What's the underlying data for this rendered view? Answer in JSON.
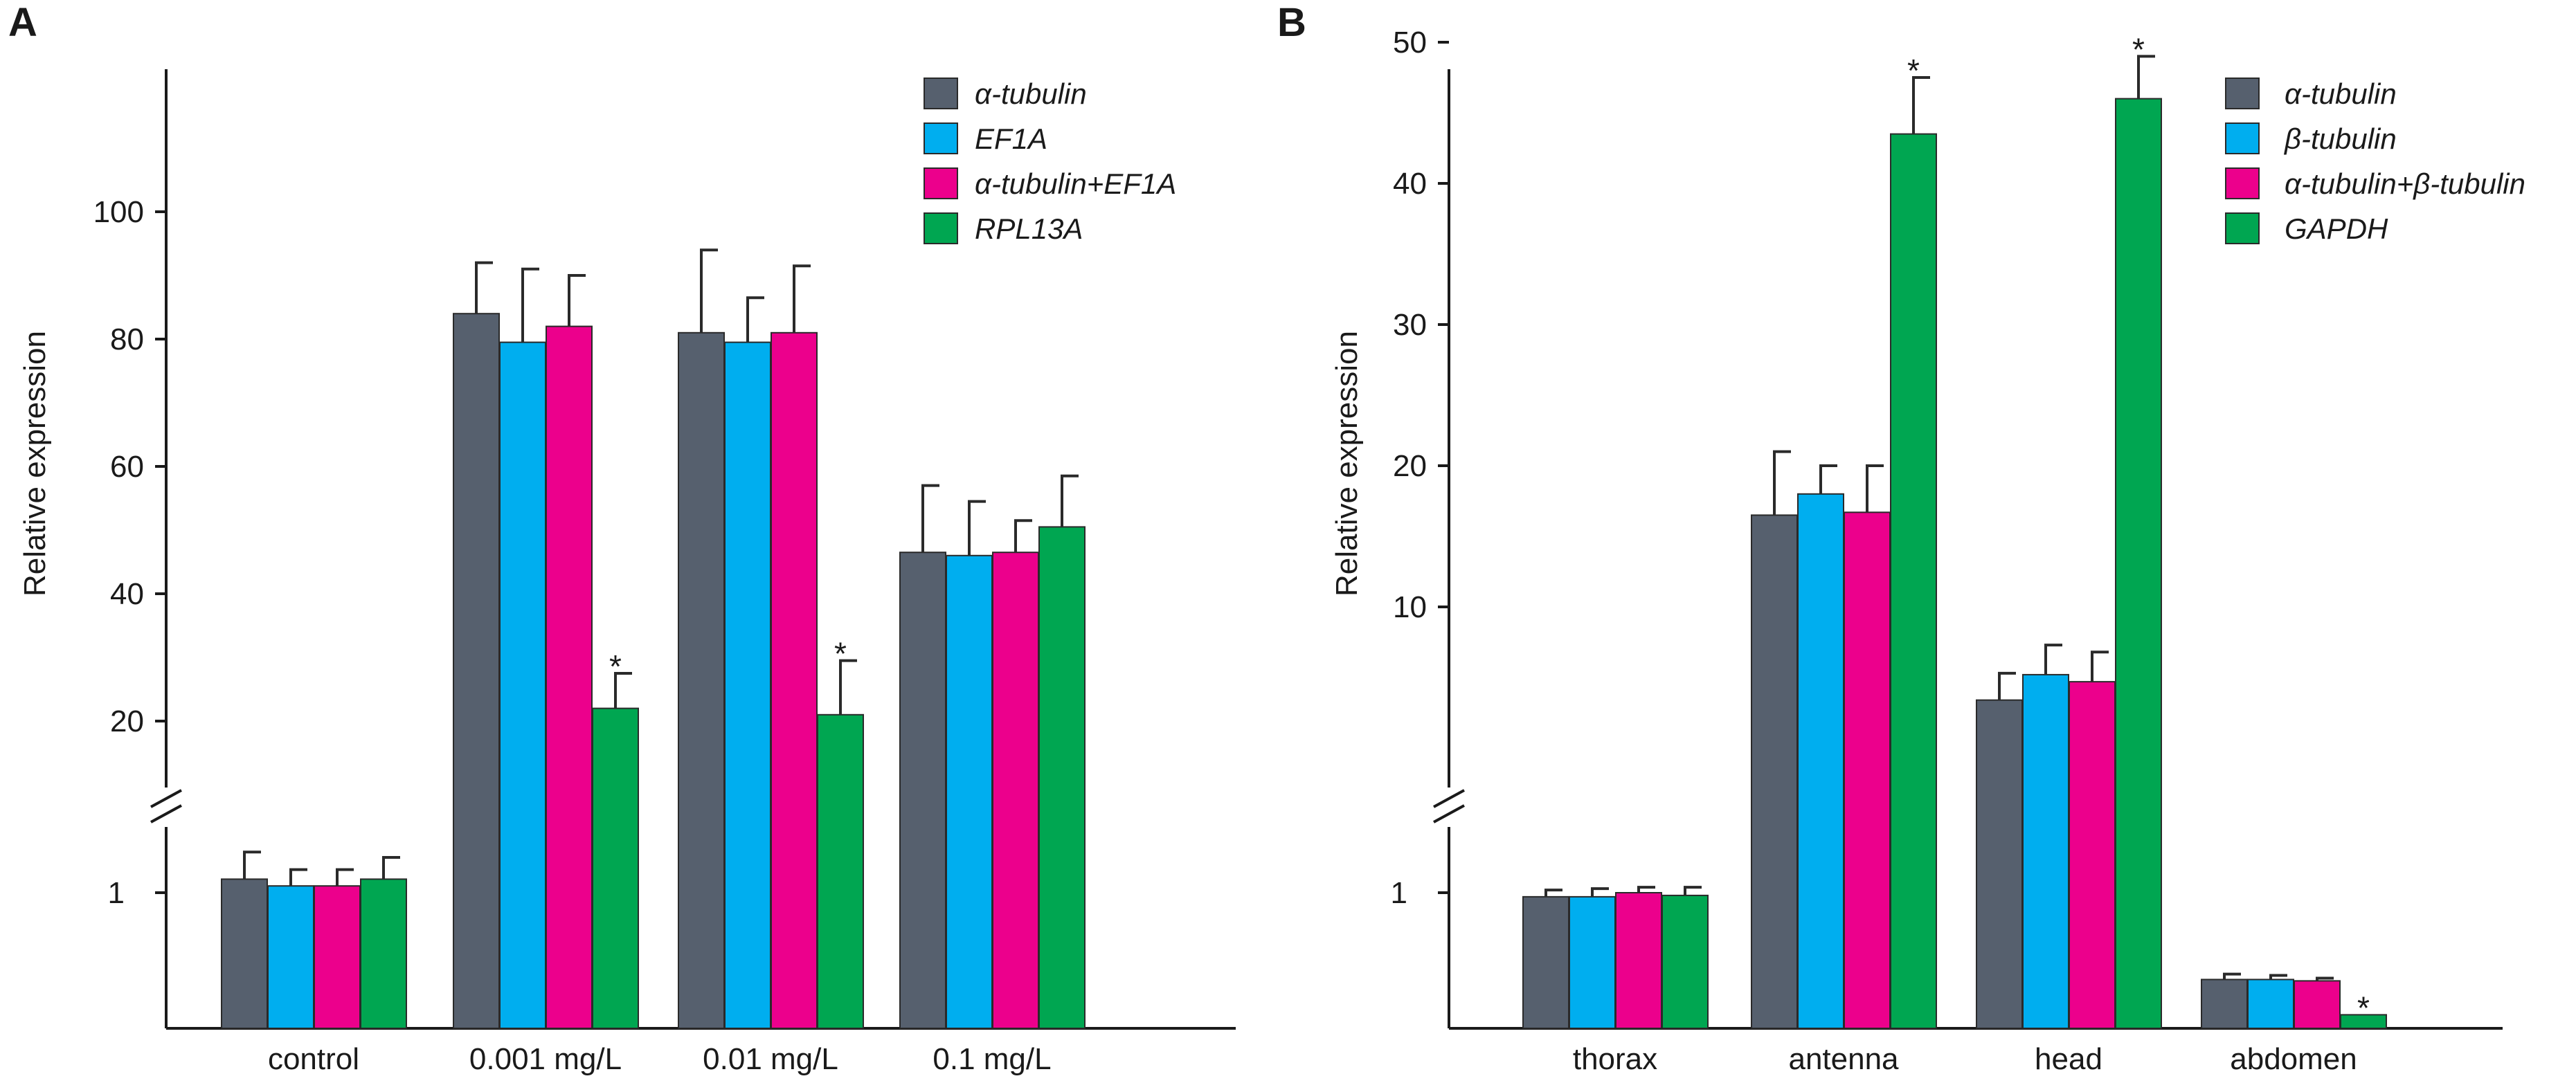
{
  "chart_data": [
    {
      "panel": "A",
      "type": "bar",
      "ylabel": "Relative expression",
      "categories": [
        "control",
        "0.001 mg/L",
        "0.01 mg/L",
        "0.1 mg/L"
      ],
      "y_axis_break": true,
      "lower_ticks": [
        "1"
      ],
      "upper_ticks": [
        "20",
        "40",
        "60",
        "80",
        "100"
      ],
      "series": [
        {
          "name": "α-tubulin",
          "color": "#56606e",
          "values": [
            1.1,
            84,
            81,
            46.5
          ],
          "errors": [
            0.2,
            8,
            13,
            10.5
          ]
        },
        {
          "name": "EF1A",
          "color": "#00aeef",
          "values": [
            1.05,
            79.5,
            79.5,
            46
          ],
          "errors": [
            0.12,
            11.5,
            7,
            8.5
          ]
        },
        {
          "name": "α-tubulin+EF1A",
          "color": "#ec008c",
          "values": [
            1.05,
            82,
            81,
            46.5
          ],
          "errors": [
            0.12,
            8,
            10.5,
            5
          ]
        },
        {
          "name": "RPL13A",
          "color": "#00a651",
          "values": [
            1.1,
            22,
            21,
            50.5
          ],
          "errors": [
            0.16,
            5.5,
            8.5,
            8
          ]
        }
      ],
      "significance": [
        {
          "category": "0.001 mg/L",
          "series": "RPL13A",
          "label": "*"
        },
        {
          "category": "0.01 mg/L",
          "series": "RPL13A",
          "label": "*"
        }
      ]
    },
    {
      "panel": "B",
      "type": "bar",
      "ylabel": "Relative expression",
      "categories": [
        "thorax",
        "antenna",
        "head",
        "abdomen"
      ],
      "y_axis_break": true,
      "lower_ticks": [
        "1"
      ],
      "upper_ticks": [
        "10",
        "20",
        "30",
        "40",
        "50"
      ],
      "series": [
        {
          "name": "α-tubulin",
          "color": "#56606e",
          "values": [
            0.97,
            16.5,
            3.4,
            0.36
          ],
          "errors": [
            0.05,
            4.5,
            1.9,
            0.04
          ]
        },
        {
          "name": "β-tubulin",
          "color": "#00aeef",
          "values": [
            0.97,
            18,
            5.2,
            0.36
          ],
          "errors": [
            0.06,
            2,
            2.1,
            0.03
          ]
        },
        {
          "name": "α-tubulin+β-tubulin",
          "color": "#ec008c",
          "values": [
            1.0,
            16.7,
            4.7,
            0.35
          ],
          "errors": [
            0.04,
            3.3,
            2.1,
            0.02
          ]
        },
        {
          "name": "GAPDH",
          "color": "#00a651",
          "values": [
            0.98,
            43.5,
            46,
            0.1
          ],
          "errors": [
            0.06,
            4,
            3,
            0.0
          ]
        }
      ],
      "significance": [
        {
          "category": "antenna",
          "series": "GAPDH",
          "label": "*"
        },
        {
          "category": "head",
          "series": "GAPDH",
          "label": "*"
        },
        {
          "category": "abdomen",
          "series": "GAPDH",
          "label": "*"
        }
      ]
    }
  ]
}
